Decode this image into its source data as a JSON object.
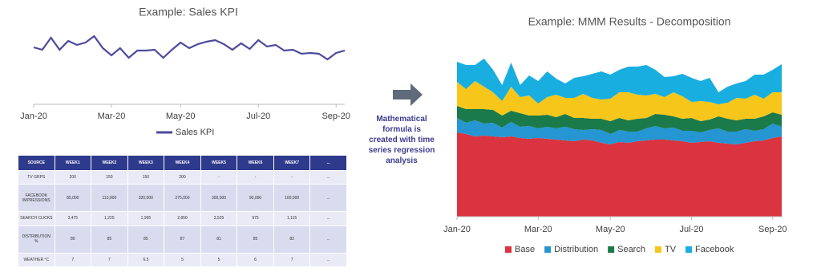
{
  "chart_data": [
    {
      "type": "line",
      "title": "Example: Sales KPI",
      "categories": [
        "Jan-20",
        null,
        null,
        null,
        null,
        null,
        null,
        null,
        null,
        "Mar-20",
        null,
        null,
        null,
        null,
        null,
        null,
        null,
        "May-20",
        null,
        null,
        null,
        null,
        null,
        null,
        null,
        null,
        "Jul-20",
        null,
        null,
        null,
        null,
        null,
        null,
        null,
        null,
        "Sep-20",
        null
      ],
      "series": [
        {
          "name": "Sales KPI",
          "color": "#4e4a9c",
          "values": [
            71,
            68,
            83,
            68,
            79,
            74,
            77,
            85,
            70,
            61,
            70,
            58,
            67,
            67,
            68,
            58,
            68,
            77,
            70,
            75,
            78,
            80,
            75,
            68,
            76,
            69,
            80,
            72,
            74,
            67,
            68,
            63,
            64,
            63,
            56,
            64,
            67
          ]
        }
      ],
      "ylim": [
        0,
        100
      ],
      "legend": "bottom"
    },
    {
      "type": "stacked-area",
      "title": "Example: MMM Results - Decomposition",
      "categories": [
        "Jan-20",
        null,
        null,
        null,
        null,
        null,
        null,
        null,
        null,
        "Mar-20",
        null,
        null,
        null,
        null,
        null,
        null,
        null,
        "May-20",
        null,
        null,
        null,
        null,
        null,
        null,
        null,
        null,
        "Jul-20",
        null,
        null,
        null,
        null,
        null,
        null,
        null,
        null,
        "Sep-20",
        null
      ],
      "series": [
        {
          "name": "Base",
          "color": "#d9343f",
          "values": [
            105,
            103,
            100,
            101,
            100,
            99,
            100,
            98,
            97,
            98,
            97,
            96,
            95,
            94,
            96,
            95,
            92,
            90,
            93,
            92,
            94,
            95,
            96,
            96,
            95,
            94,
            92,
            93,
            94,
            92,
            91,
            90,
            92,
            94,
            95,
            98,
            100
          ]
        },
        {
          "name": "Distribution",
          "color": "#2596d1",
          "values": [
            18,
            14,
            20,
            15,
            17,
            12,
            18,
            14,
            16,
            12,
            15,
            14,
            17,
            15,
            12,
            14,
            16,
            13,
            15,
            14,
            12,
            15,
            17,
            14,
            16,
            13,
            15,
            12,
            14,
            18,
            15,
            16,
            17,
            13,
            14,
            18,
            12
          ]
        },
        {
          "name": "Search",
          "color": "#1b7a4a",
          "values": [
            15,
            17,
            14,
            18,
            16,
            15,
            14,
            17,
            13,
            16,
            15,
            14,
            16,
            14,
            15,
            13,
            14,
            16,
            15,
            14,
            16,
            13,
            15,
            17,
            14,
            15,
            16,
            14,
            13,
            15,
            16,
            14,
            13,
            15,
            16,
            14,
            15
          ]
        },
        {
          "name": "TV",
          "color": "#f6c61b",
          "values": [
            30,
            25,
            35,
            28,
            22,
            18,
            30,
            20,
            25,
            15,
            22,
            28,
            20,
            25,
            30,
            26,
            24,
            28,
            32,
            35,
            30,
            28,
            25,
            22,
            30,
            28,
            20,
            25,
            22,
            15,
            20,
            28,
            25,
            30,
            22,
            25,
            28
          ]
        },
        {
          "name": "Facebook",
          "color": "#19aee0",
          "values": [
            25,
            30,
            20,
            35,
            28,
            20,
            30,
            15,
            25,
            28,
            32,
            20,
            18,
            25,
            22,
            30,
            35,
            30,
            28,
            32,
            35,
            38,
            30,
            25,
            20,
            28,
            30,
            25,
            30,
            15,
            20,
            18,
            22,
            25,
            30,
            28,
            35
          ]
        }
      ],
      "ylim": [
        0,
        200
      ],
      "legend": "bottom"
    }
  ],
  "table": {
    "header": [
      "SOURCE",
      "WEEK1",
      "WEEK2",
      "WEEK3",
      "WEEK4",
      "WEEK5",
      "WEEK6",
      "WEEK7",
      "..."
    ],
    "rows": [
      [
        "TV GRPS",
        "200",
        "150",
        "150",
        "200",
        "-",
        "-",
        "-",
        "..."
      ],
      [
        "FACEBOOK IMPRESSIONS",
        "85,000",
        "113,000",
        "320,000",
        "275,000",
        "300,000",
        "90,000",
        "100,000",
        "..."
      ],
      [
        "SEARCH CLICKS",
        "3,475",
        "1,225",
        "1,995",
        "2,850",
        "3,525",
        "975",
        "1,115",
        "..."
      ],
      [
        "DISTRIBUTION %",
        "80",
        "85",
        "85",
        "87",
        "81",
        "85",
        "82",
        "..."
      ],
      [
        "WEATHER °C",
        "7",
        "7",
        "6.5",
        "5",
        "5",
        "6",
        "7",
        "..."
      ]
    ]
  },
  "annotation": "Mathematical formula is created with time series regression analysis"
}
